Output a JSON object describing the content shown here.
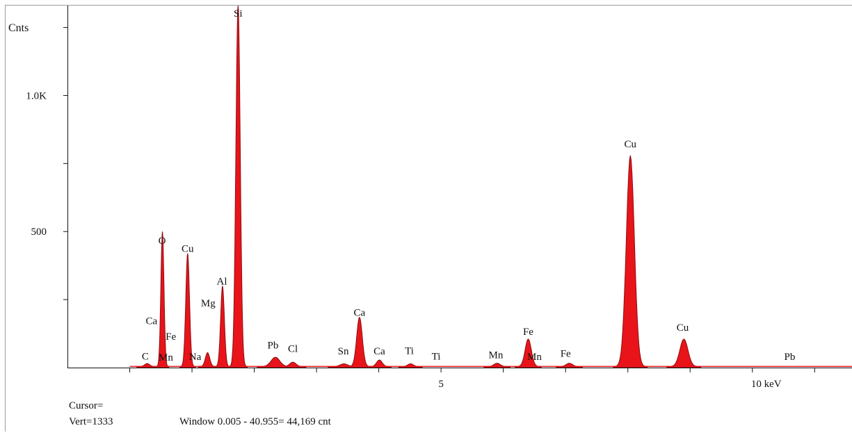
{
  "chart_data": {
    "type": "area",
    "title": "",
    "ylabel": "Cnts",
    "xunit": "keV",
    "xlim": [
      -1.0,
      11.6
    ],
    "ylim": [
      0,
      1300
    ],
    "x_tick_labels": [
      {
        "x": 5,
        "label": "5"
      },
      {
        "x": 10,
        "label": "10 keV"
      }
    ],
    "x_minor_ticks": [
      0,
      1,
      2,
      3,
      4,
      5,
      6,
      7,
      8,
      9,
      10,
      11
    ],
    "y_tick_labels": [
      {
        "y": 500,
        "label": "500"
      },
      {
        "y": 1000,
        "label": "1.0K"
      }
    ],
    "y_minor_ticks": [
      250,
      500,
      750,
      1000,
      1250
    ],
    "fill_color": "#e8141a",
    "edge_color": "#8c0f12",
    "baseline": 4,
    "peaks": [
      {
        "element": "C",
        "x": 0.28,
        "y": 15,
        "w": 0.04
      },
      {
        "element": "O",
        "x": 0.525,
        "y": 500,
        "w": 0.025
      },
      {
        "element": "Cu",
        "x": 0.93,
        "y": 420,
        "w": 0.03
      },
      {
        "element": "Mg",
        "x": 1.25,
        "y": 55,
        "w": 0.035
      },
      {
        "element": "Al",
        "x": 1.49,
        "y": 300,
        "w": 0.03
      },
      {
        "element": "Si",
        "x": 1.74,
        "y": 1340,
        "w": 0.035
      },
      {
        "element": "Pb",
        "x": 2.34,
        "y": 38,
        "w": 0.07
      },
      {
        "element": "Cl",
        "x": 2.62,
        "y": 20,
        "w": 0.05
      },
      {
        "element": "Sn",
        "x": 3.44,
        "y": 14,
        "w": 0.06
      },
      {
        "element": "Ca",
        "x": 3.69,
        "y": 185,
        "w": 0.045
      },
      {
        "element": "Ca",
        "x": 4.01,
        "y": 28,
        "w": 0.045
      },
      {
        "element": "Ti",
        "x": 4.51,
        "y": 14,
        "w": 0.045
      },
      {
        "element": "Mn",
        "x": 5.9,
        "y": 16,
        "w": 0.05
      },
      {
        "element": "Fe",
        "x": 6.4,
        "y": 105,
        "w": 0.05
      },
      {
        "element": "Fe",
        "x": 7.06,
        "y": 16,
        "w": 0.05
      },
      {
        "element": "Cu",
        "x": 8.04,
        "y": 780,
        "w": 0.065
      },
      {
        "element": "Cu",
        "x": 8.9,
        "y": 105,
        "w": 0.065
      }
    ],
    "annotations": [
      {
        "text": "Si",
        "x": 1.74,
        "y": 1295
      },
      {
        "text": "O",
        "x": 0.52,
        "y": 455
      },
      {
        "text": "Cu",
        "x": 0.93,
        "y": 425
      },
      {
        "text": "Al",
        "x": 1.48,
        "y": 305
      },
      {
        "text": "Mg",
        "x": 1.26,
        "y": 225
      },
      {
        "text": "Ca",
        "x": 0.35,
        "y": 160
      },
      {
        "text": "Fe",
        "x": 0.66,
        "y": 102
      },
      {
        "text": "C",
        "x": 0.25,
        "y": 30
      },
      {
        "text": "Mn",
        "x": 0.58,
        "y": 26
      },
      {
        "text": "Na",
        "x": 1.05,
        "y": 28
      },
      {
        "text": "Pb",
        "x": 2.3,
        "y": 70
      },
      {
        "text": "Cl",
        "x": 2.62,
        "y": 58
      },
      {
        "text": "Sn",
        "x": 3.43,
        "y": 48
      },
      {
        "text": "Ca",
        "x": 3.69,
        "y": 190
      },
      {
        "text": "Ca",
        "x": 4.01,
        "y": 48
      },
      {
        "text": "Ti",
        "x": 4.49,
        "y": 50
      },
      {
        "text": "Ti",
        "x": 4.92,
        "y": 30
      },
      {
        "text": "Mn",
        "x": 5.88,
        "y": 34
      },
      {
        "text": "Fe",
        "x": 6.4,
        "y": 120
      },
      {
        "text": "Mn",
        "x": 6.5,
        "y": 28
      },
      {
        "text": "Fe",
        "x": 7.0,
        "y": 40
      },
      {
        "text": "Cu",
        "x": 8.04,
        "y": 810
      },
      {
        "text": "Cu",
        "x": 8.88,
        "y": 135
      },
      {
        "text": "Pb",
        "x": 10.6,
        "y": 28
      }
    ]
  },
  "status": {
    "cursor": "Cursor=",
    "vert": "Vert=1333",
    "window": "Window 0.005 - 40.955=   44,169 cnt"
  }
}
